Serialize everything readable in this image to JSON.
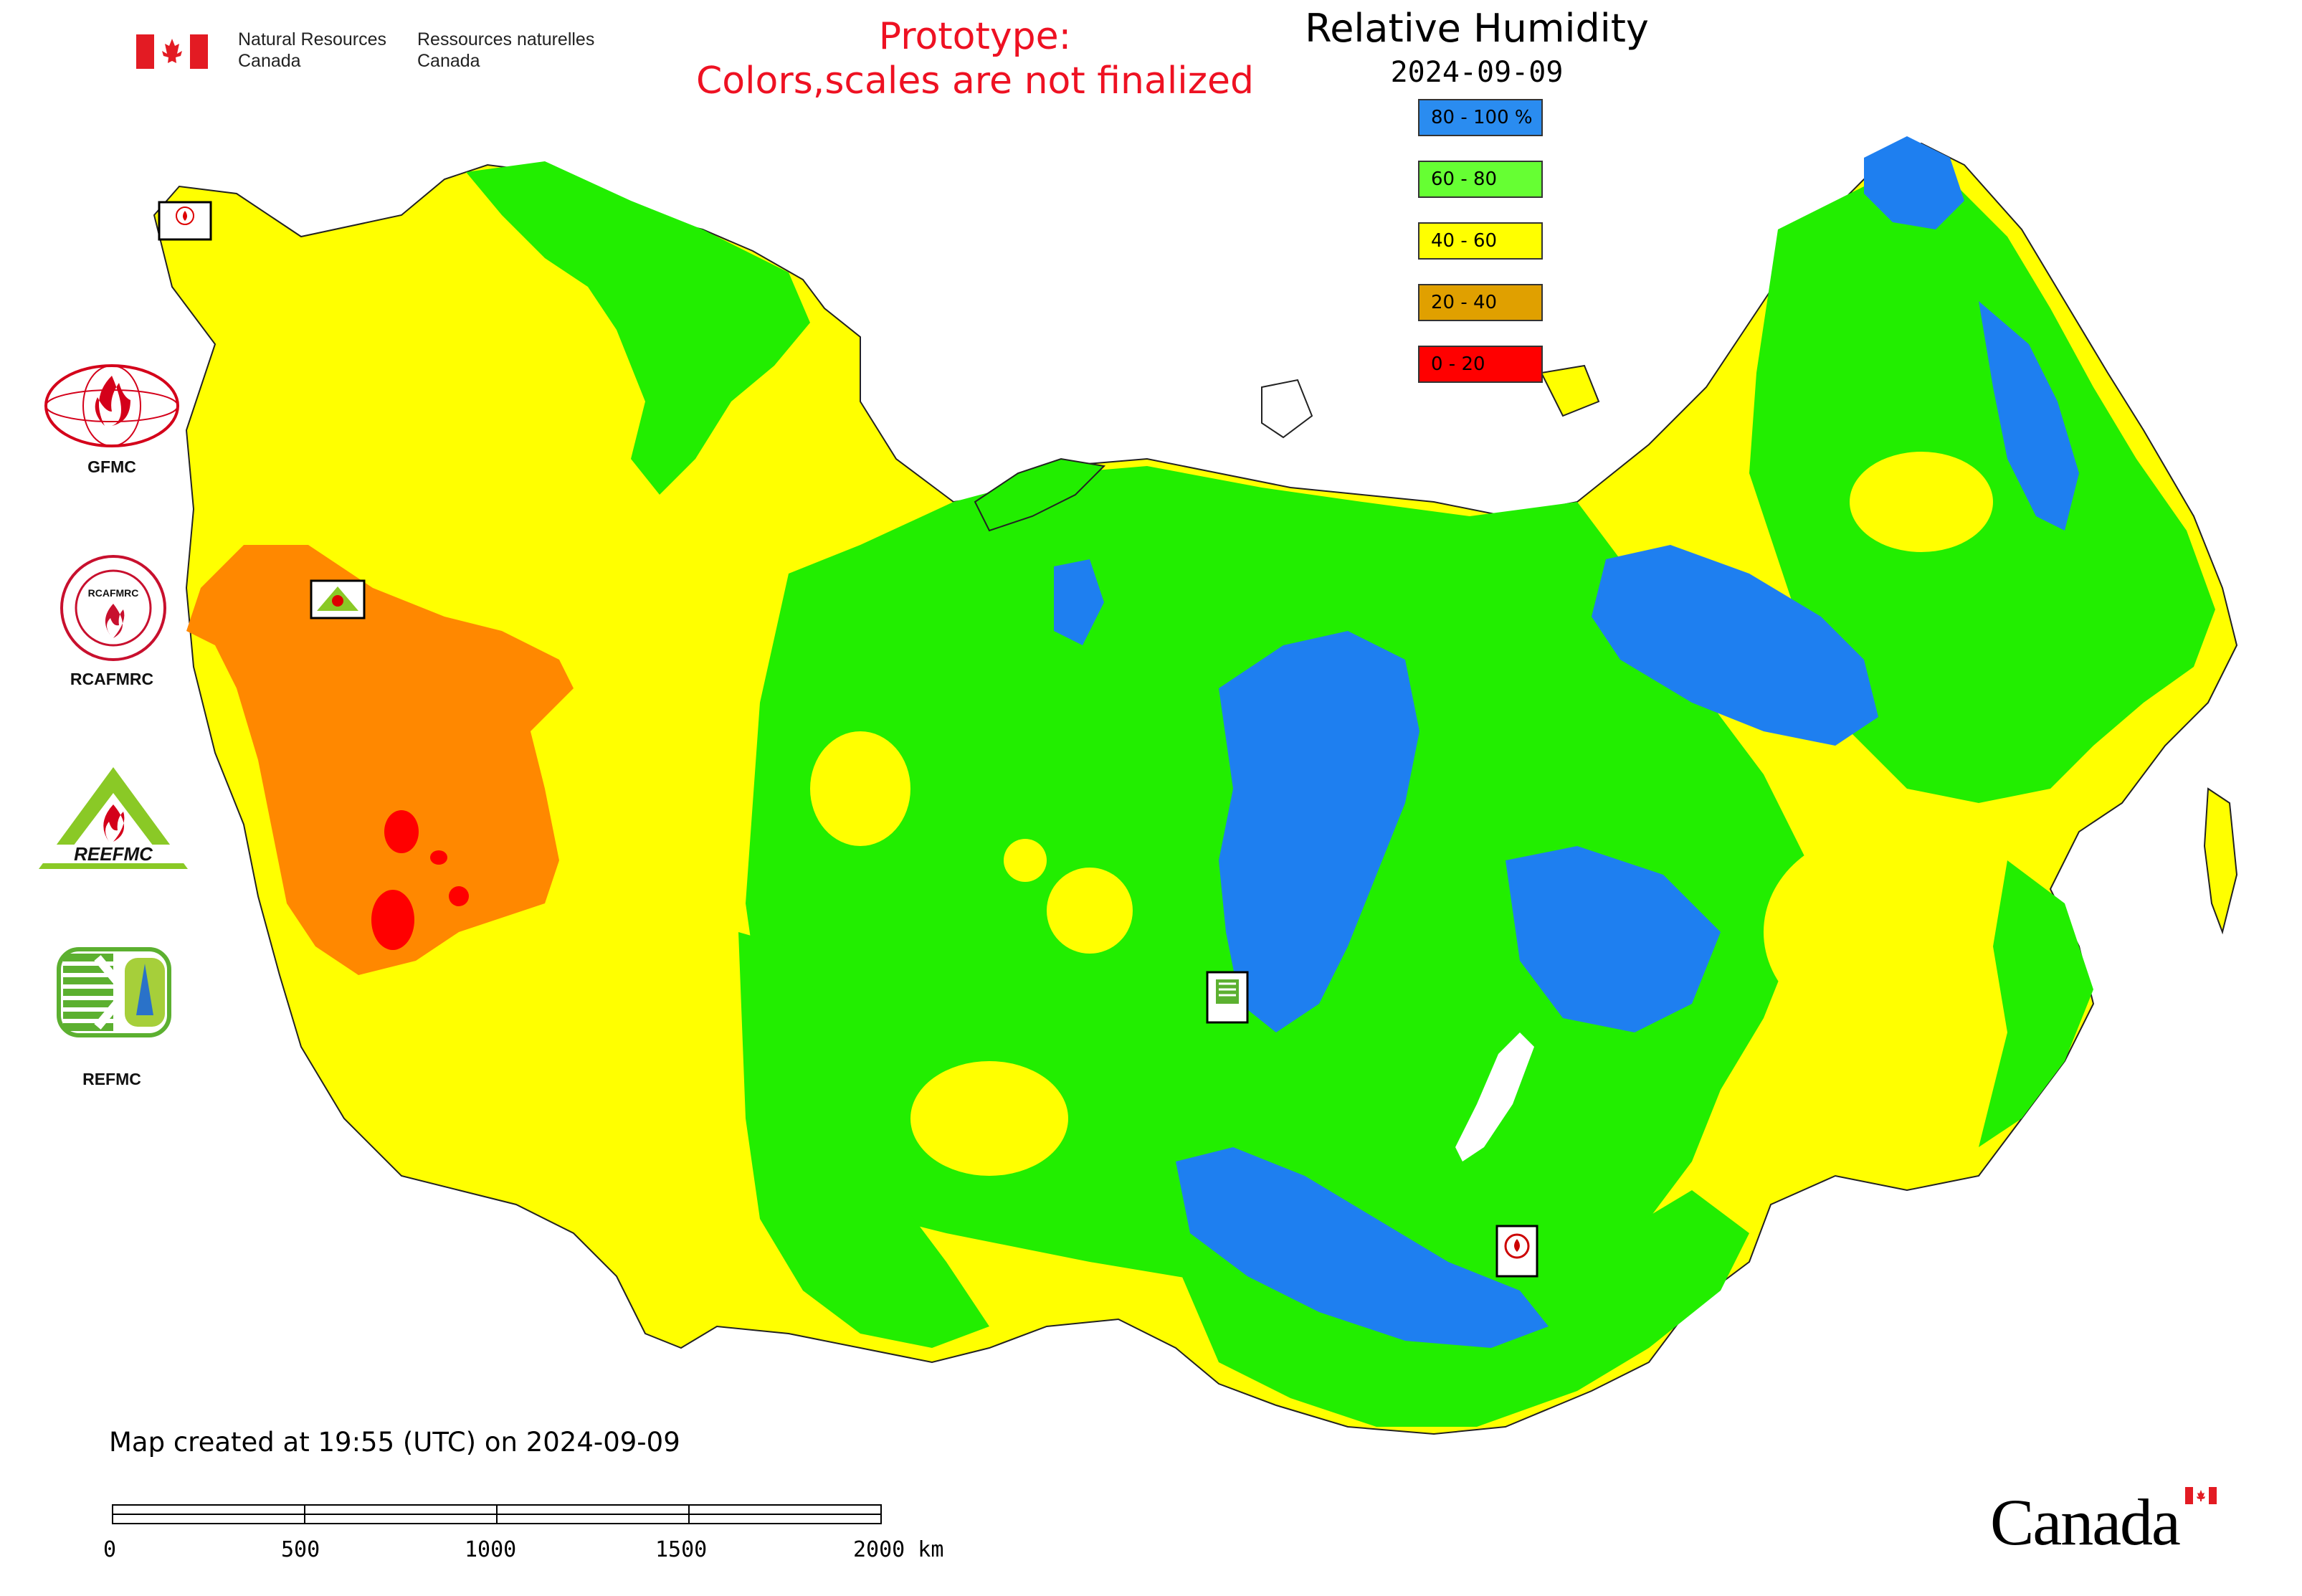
{
  "header": {
    "agency_en": "Natural Resources",
    "agency_en_2": "Canada",
    "agency_fr": "Ressources naturelles",
    "agency_fr_2": "Canada",
    "prototype_line1": "Prototype:",
    "prototype_line2": "Colors,scales are not finalized"
  },
  "map": {
    "title": "Relative Humidity",
    "date": "2024-09-09",
    "legend": [
      {
        "label": "80 - 100 %",
        "color": "#2a8cf0"
      },
      {
        "label": "60 - 80",
        "color": "#66ff33"
      },
      {
        "label": "40 - 60",
        "color": "#ffff00"
      },
      {
        "label": "20 - 40",
        "color": "#e0a000"
      },
      {
        "label": "0 - 20",
        "color": "#ff0000"
      }
    ],
    "region_colors": {
      "very_humid": "#1e7ff0",
      "humid": "#22ee00",
      "moderate": "#ffff00",
      "dry": "#ff8800",
      "very_dry": "#ff0000"
    }
  },
  "centres": [
    {
      "label": "GFMC",
      "icon": "fire-globe-logo"
    },
    {
      "label": "RCAFMRC",
      "icon": "fire-globe-seal-logo"
    },
    {
      "label": "REEFMC",
      "icon": "triangle-fire-logo"
    },
    {
      "label": "REFMC",
      "icon": "sigma-shield-logo"
    }
  ],
  "footer": {
    "created": "Map created at 19:55 (UTC) on 2024-09-09",
    "scale_labels": [
      "0",
      "500",
      "1000",
      "1500",
      "2000 km"
    ],
    "wordmark": "Canada"
  }
}
